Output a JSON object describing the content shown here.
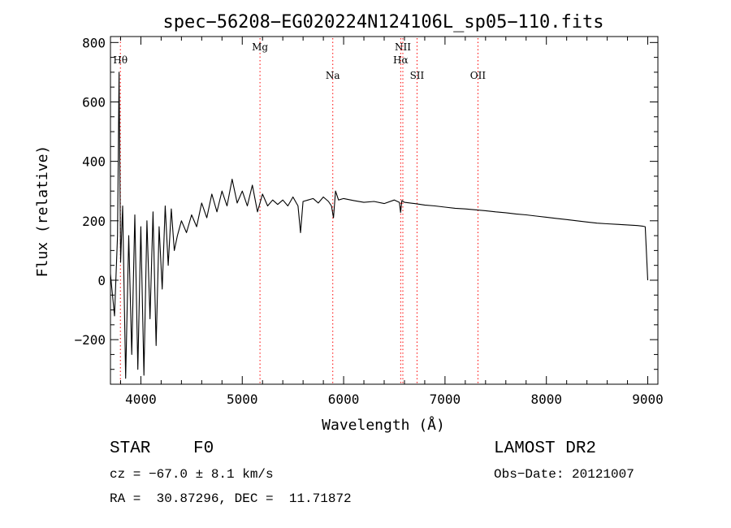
{
  "chart_data": {
    "type": "line",
    "title": "spec−56208−EG020224N124106L_sp05−110.fits",
    "xlabel": "Wavelength (Å)",
    "ylabel": "Flux (relative)",
    "xlim": [
      3700,
      9100
    ],
    "ylim": [
      -350,
      820
    ],
    "x_ticks": [
      4000,
      5000,
      6000,
      7000,
      8000,
      9000
    ],
    "y_ticks": [
      -200,
      0,
      200,
      400,
      600,
      800
    ],
    "y_tick_labels": [
      "−200",
      "0",
      "200",
      "400",
      "600",
      "800"
    ],
    "grid": false,
    "legend": "none",
    "line_color": "#000000",
    "marker_color": "#ff0000",
    "spectral_lines": [
      {
        "label": "Hθ",
        "wavelength": 3798,
        "row": 1
      },
      {
        "label": "Mg",
        "wavelength": 5175,
        "row": 0
      },
      {
        "label": "Na",
        "wavelength": 5893,
        "row": 2
      },
      {
        "label": "NII",
        "wavelength": 6584,
        "row": 0
      },
      {
        "label": "Hα",
        "wavelength": 6563,
        "row": 1
      },
      {
        "label": "SII",
        "wavelength": 6724,
        "row": 2
      },
      {
        "label": "OII",
        "wavelength": 7325,
        "row": 2
      }
    ],
    "series": [
      {
        "name": "flux",
        "x": [
          3700,
          3740,
          3770,
          3785,
          3800,
          3820,
          3850,
          3880,
          3910,
          3940,
          3970,
          4000,
          4030,
          4060,
          4090,
          4120,
          4150,
          4180,
          4210,
          4240,
          4270,
          4300,
          4330,
          4360,
          4400,
          4450,
          4500,
          4550,
          4600,
          4650,
          4700,
          4750,
          4800,
          4850,
          4900,
          4950,
          5000,
          5050,
          5100,
          5150,
          5200,
          5250,
          5300,
          5350,
          5400,
          5450,
          5500,
          5550,
          5575,
          5600,
          5650,
          5700,
          5750,
          5800,
          5850,
          5880,
          5900,
          5920,
          5950,
          6000,
          6100,
          6200,
          6300,
          6400,
          6500,
          6550,
          6562,
          6575,
          6600,
          6700,
          6800,
          6900,
          7000,
          7100,
          7200,
          7300,
          7400,
          7500,
          7600,
          7700,
          7800,
          7900,
          8000,
          8100,
          8200,
          8300,
          8400,
          8500,
          8600,
          8700,
          8800,
          8900,
          8950,
          8975,
          9000
        ],
        "y": [
          20,
          -120,
          150,
          700,
          60,
          250,
          -330,
          150,
          -250,
          220,
          -300,
          180,
          -320,
          200,
          -130,
          230,
          -220,
          180,
          -30,
          250,
          50,
          240,
          100,
          150,
          200,
          160,
          220,
          180,
          260,
          210,
          290,
          230,
          300,
          250,
          340,
          260,
          300,
          250,
          320,
          230,
          290,
          250,
          270,
          255,
          270,
          250,
          280,
          250,
          160,
          265,
          270,
          275,
          260,
          280,
          265,
          250,
          210,
          300,
          270,
          275,
          268,
          262,
          265,
          258,
          270,
          262,
          228,
          268,
          262,
          258,
          253,
          250,
          246,
          242,
          240,
          237,
          234,
          230,
          227,
          223,
          220,
          216,
          212,
          208,
          204,
          200,
          196,
          192,
          190,
          188,
          186,
          184,
          182,
          180,
          0
        ]
      }
    ]
  },
  "info": {
    "object_class": "STAR",
    "subclass": "F0",
    "survey": "LAMOST DR2",
    "redshift": "cz = −67.0 ± 8.1 km/s",
    "obs_date": "Obs−Date: 20121007",
    "coords": "RA =  30.87296, DEC =  11.71872"
  }
}
